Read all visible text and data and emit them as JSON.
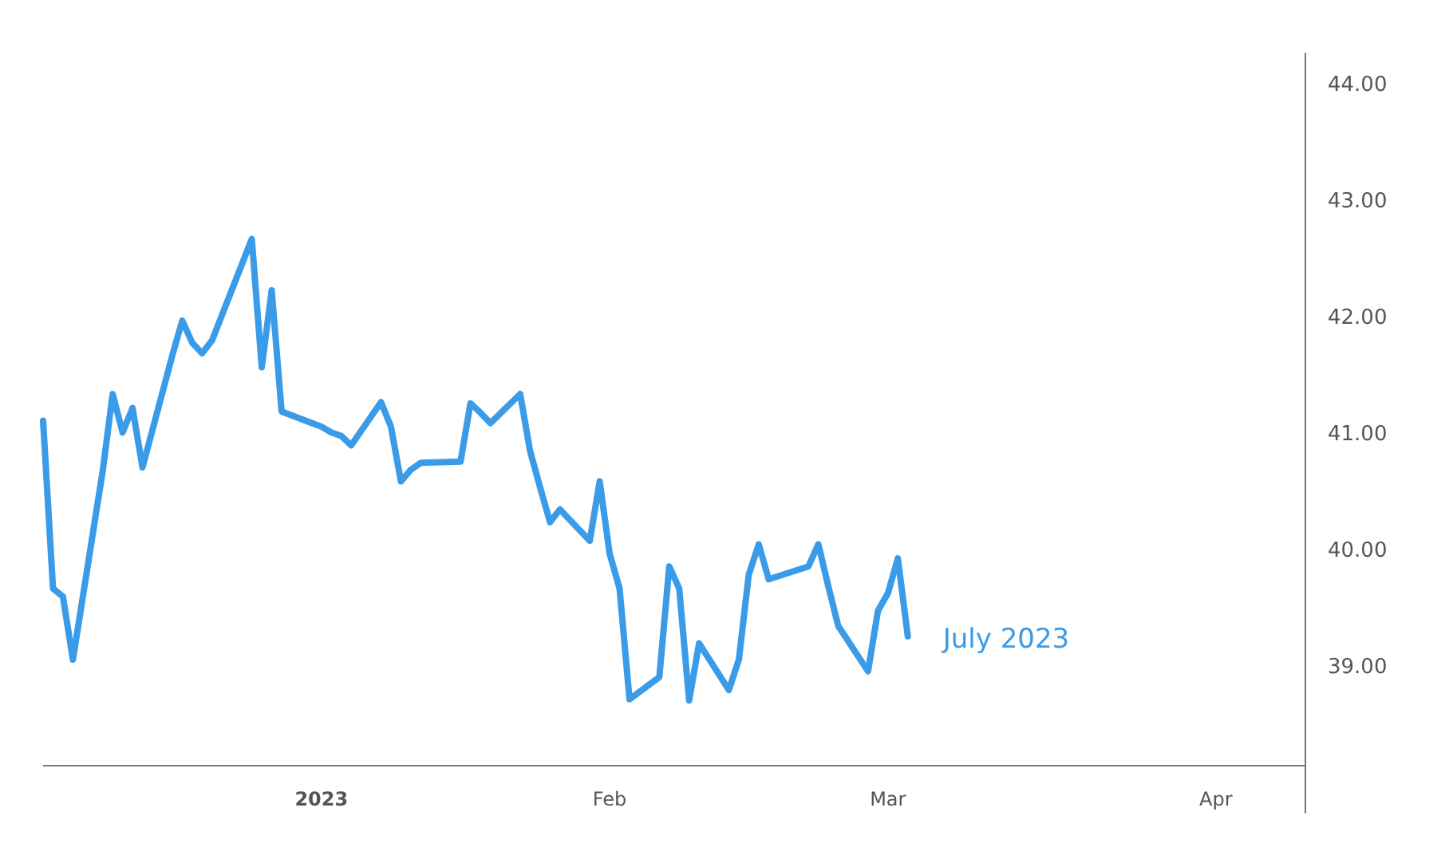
{
  "chart_data": {
    "type": "line",
    "xlim": [
      "2022-12-06",
      "2023-04-12"
    ],
    "ylim": [
      38.14,
      44.26
    ],
    "xticks": [
      {
        "value": "2023-01-03",
        "label": "2023"
      },
      {
        "value": "2023-02-01",
        "label": "Feb"
      },
      {
        "value": "2023-03-01",
        "label": "Mar"
      },
      {
        "value": "2023-04-03",
        "label": "Apr"
      }
    ],
    "yticks": [
      {
        "value": 39,
        "label": "39.00"
      },
      {
        "value": 40,
        "label": "40.00"
      },
      {
        "value": 41,
        "label": "41.00"
      },
      {
        "value": 42,
        "label": "42.00"
      },
      {
        "value": 43,
        "label": "43.00"
      },
      {
        "value": 44,
        "label": "44.00"
      }
    ],
    "x": [
      "2022-12-06",
      "2022-12-07",
      "2022-12-08",
      "2022-12-09",
      "2022-12-12",
      "2022-12-13",
      "2022-12-14",
      "2022-12-15",
      "2022-12-16",
      "2022-12-19",
      "2022-12-20",
      "2022-12-21",
      "2022-12-22",
      "2022-12-23",
      "2022-12-27",
      "2022-12-28",
      "2022-12-29",
      "2022-12-30",
      "2023-01-03",
      "2023-01-04",
      "2023-01-05",
      "2023-01-06",
      "2023-01-09",
      "2023-01-10",
      "2023-01-11",
      "2023-01-12",
      "2023-01-13",
      "2023-01-17",
      "2023-01-18",
      "2023-01-19",
      "2023-01-20",
      "2023-01-23",
      "2023-01-24",
      "2023-01-25",
      "2023-01-26",
      "2023-01-27",
      "2023-01-30",
      "2023-01-31",
      "2023-02-01",
      "2023-02-02",
      "2023-02-03",
      "2023-02-06",
      "2023-02-07",
      "2023-02-08",
      "2023-02-09",
      "2023-02-10",
      "2023-02-13",
      "2023-02-14",
      "2023-02-15",
      "2023-02-16",
      "2023-02-17",
      "2023-02-21",
      "2023-02-22",
      "2023-02-23",
      "2023-02-24",
      "2023-02-27",
      "2023-02-28",
      "2023-03-01",
      "2023-03-02",
      "2023-03-03"
    ],
    "series": [
      {
        "name": "July 2023",
        "color": "#3a9be8",
        "values": [
          41.1,
          39.66,
          39.59,
          39.05,
          40.67,
          41.33,
          41.0,
          41.21,
          40.7,
          41.66,
          41.96,
          41.77,
          41.68,
          41.79,
          42.66,
          41.56,
          42.22,
          41.18,
          41.05,
          41.0,
          40.97,
          40.89,
          41.26,
          41.05,
          40.58,
          40.68,
          40.74,
          40.75,
          41.25,
          41.17,
          41.08,
          41.33,
          40.84,
          40.53,
          40.23,
          40.34,
          40.07,
          40.58,
          39.96,
          39.66,
          38.71,
          38.9,
          39.85,
          39.66,
          38.7,
          39.19,
          38.79,
          39.05,
          39.78,
          40.04,
          39.74,
          39.85,
          40.04,
          39.68,
          39.34,
          38.95,
          39.47,
          39.62,
          39.92,
          39.25
        ]
      }
    ]
  }
}
